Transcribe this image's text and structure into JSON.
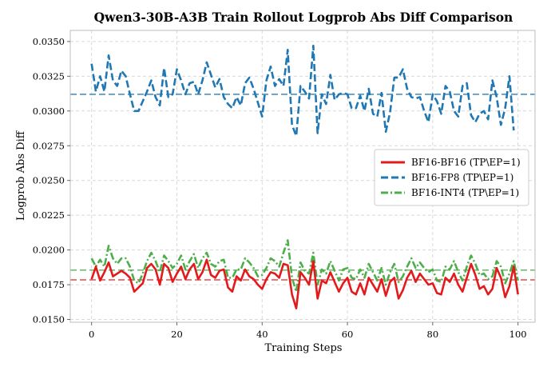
{
  "chart_data": {
    "type": "line",
    "title": "Qwen3-30B-A3B Train Rollout Logprob Abs Diff Comparison",
    "xlabel": "Training Steps",
    "ylabel": "Logprob Abs Diff",
    "xlim": [
      -5,
      104
    ],
    "ylim": [
      0.0148,
      0.0358
    ],
    "xticks": [
      0,
      20,
      40,
      60,
      80,
      100
    ],
    "yticks": [
      0.015,
      0.0175,
      0.02,
      0.0225,
      0.025,
      0.0275,
      0.03,
      0.0325,
      0.035
    ],
    "ytick_labels": [
      "0.0150",
      "0.0175",
      "0.0200",
      "0.0225",
      "0.0250",
      "0.0275",
      "0.0300",
      "0.0325",
      "0.0350"
    ],
    "grid": true,
    "legend_position": "center-right",
    "series": [
      {
        "name": "BF16-BF16 (TP\\EP=1)",
        "color": "#e31a1c",
        "style": "solid",
        "mean": 0.01785,
        "y": [
          0.0179,
          0.0188,
          0.0178,
          0.0184,
          0.0191,
          0.0181,
          0.0183,
          0.0185,
          0.0183,
          0.018,
          0.017,
          0.0173,
          0.0176,
          0.0187,
          0.019,
          0.0186,
          0.0175,
          0.019,
          0.0187,
          0.0177,
          0.0183,
          0.0188,
          0.0179,
          0.0186,
          0.019,
          0.0179,
          0.0184,
          0.0193,
          0.0182,
          0.018,
          0.0185,
          0.0186,
          0.0173,
          0.017,
          0.0181,
          0.0178,
          0.0186,
          0.0181,
          0.0179,
          0.0175,
          0.0172,
          0.0179,
          0.0184,
          0.0183,
          0.018,
          0.019,
          0.0189,
          0.0168,
          0.0158,
          0.0184,
          0.018,
          0.0175,
          0.0192,
          0.0165,
          0.0178,
          0.0176,
          0.0184,
          0.0177,
          0.017,
          0.0176,
          0.018,
          0.017,
          0.0168,
          0.0176,
          0.0168,
          0.018,
          0.0175,
          0.017,
          0.0179,
          0.0167,
          0.0177,
          0.018,
          0.0165,
          0.0171,
          0.018,
          0.0185,
          0.0177,
          0.0183,
          0.0179,
          0.0175,
          0.0176,
          0.0169,
          0.0168,
          0.018,
          0.0177,
          0.0183,
          0.0175,
          0.017,
          0.018,
          0.019,
          0.0182,
          0.0172,
          0.0174,
          0.0168,
          0.0172,
          0.0187,
          0.018,
          0.0166,
          0.0174,
          0.0188,
          0.0168
        ]
      },
      {
        "name": "BF16-FP8 (TP\\EP=1)",
        "color": "#1f77b4",
        "style": "dashed",
        "mean": 0.0312,
        "y": [
          0.0334,
          0.0314,
          0.0325,
          0.0314,
          0.034,
          0.0322,
          0.0318,
          0.0329,
          0.0325,
          0.0312,
          0.03,
          0.03,
          0.0307,
          0.0314,
          0.0322,
          0.031,
          0.0304,
          0.0331,
          0.031,
          0.0312,
          0.033,
          0.0322,
          0.0312,
          0.032,
          0.0321,
          0.0312,
          0.0322,
          0.0335,
          0.0326,
          0.0317,
          0.0323,
          0.031,
          0.0305,
          0.0302,
          0.031,
          0.0304,
          0.032,
          0.0324,
          0.0316,
          0.0306,
          0.0296,
          0.0322,
          0.0332,
          0.0318,
          0.0323,
          0.0318,
          0.0344,
          0.029,
          0.0282,
          0.0318,
          0.0314,
          0.0309,
          0.0347,
          0.0284,
          0.0312,
          0.0305,
          0.0326,
          0.0308,
          0.0312,
          0.0313,
          0.0312,
          0.0302,
          0.0302,
          0.0311,
          0.03,
          0.0316,
          0.0298,
          0.0296,
          0.0313,
          0.0285,
          0.0299,
          0.0324,
          0.0324,
          0.033,
          0.0316,
          0.031,
          0.0309,
          0.031,
          0.03,
          0.0292,
          0.0312,
          0.0307,
          0.0298,
          0.0318,
          0.0314,
          0.03,
          0.0296,
          0.0318,
          0.032,
          0.0297,
          0.0292,
          0.0298,
          0.03,
          0.0294,
          0.0322,
          0.031,
          0.029,
          0.0302,
          0.0325,
          0.0286
        ]
      },
      {
        "name": "BF16-INT4 (TP\\EP=1)",
        "color": "#4daf4a",
        "style": "dashdot",
        "mean": 0.01855,
        "y": [
          0.0194,
          0.0188,
          0.0193,
          0.0188,
          0.0203,
          0.0194,
          0.019,
          0.0194,
          0.0194,
          0.0188,
          0.0178,
          0.0176,
          0.0183,
          0.0192,
          0.0198,
          0.0192,
          0.0184,
          0.0196,
          0.0192,
          0.0187,
          0.019,
          0.0196,
          0.0186,
          0.0192,
          0.0197,
          0.0187,
          0.0194,
          0.0198,
          0.019,
          0.0188,
          0.0192,
          0.0193,
          0.018,
          0.018,
          0.0186,
          0.0186,
          0.0194,
          0.0191,
          0.0187,
          0.0181,
          0.0182,
          0.0187,
          0.0194,
          0.0192,
          0.0188,
          0.0198,
          0.0207,
          0.018,
          0.017,
          0.0191,
          0.0185,
          0.0183,
          0.0198,
          0.0175,
          0.0186,
          0.0183,
          0.0192,
          0.0185,
          0.0178,
          0.0186,
          0.0187,
          0.018,
          0.0179,
          0.0186,
          0.018,
          0.019,
          0.0184,
          0.0178,
          0.0187,
          0.0175,
          0.0184,
          0.019,
          0.0177,
          0.0181,
          0.0188,
          0.0194,
          0.0187,
          0.0191,
          0.0187,
          0.0184,
          0.0186,
          0.0178,
          0.0177,
          0.0188,
          0.0186,
          0.0192,
          0.0184,
          0.0178,
          0.0188,
          0.0196,
          0.019,
          0.0182,
          0.0183,
          0.0179,
          0.0181,
          0.0192,
          0.0188,
          0.0176,
          0.0183,
          0.0192,
          0.0178
        ]
      }
    ]
  }
}
